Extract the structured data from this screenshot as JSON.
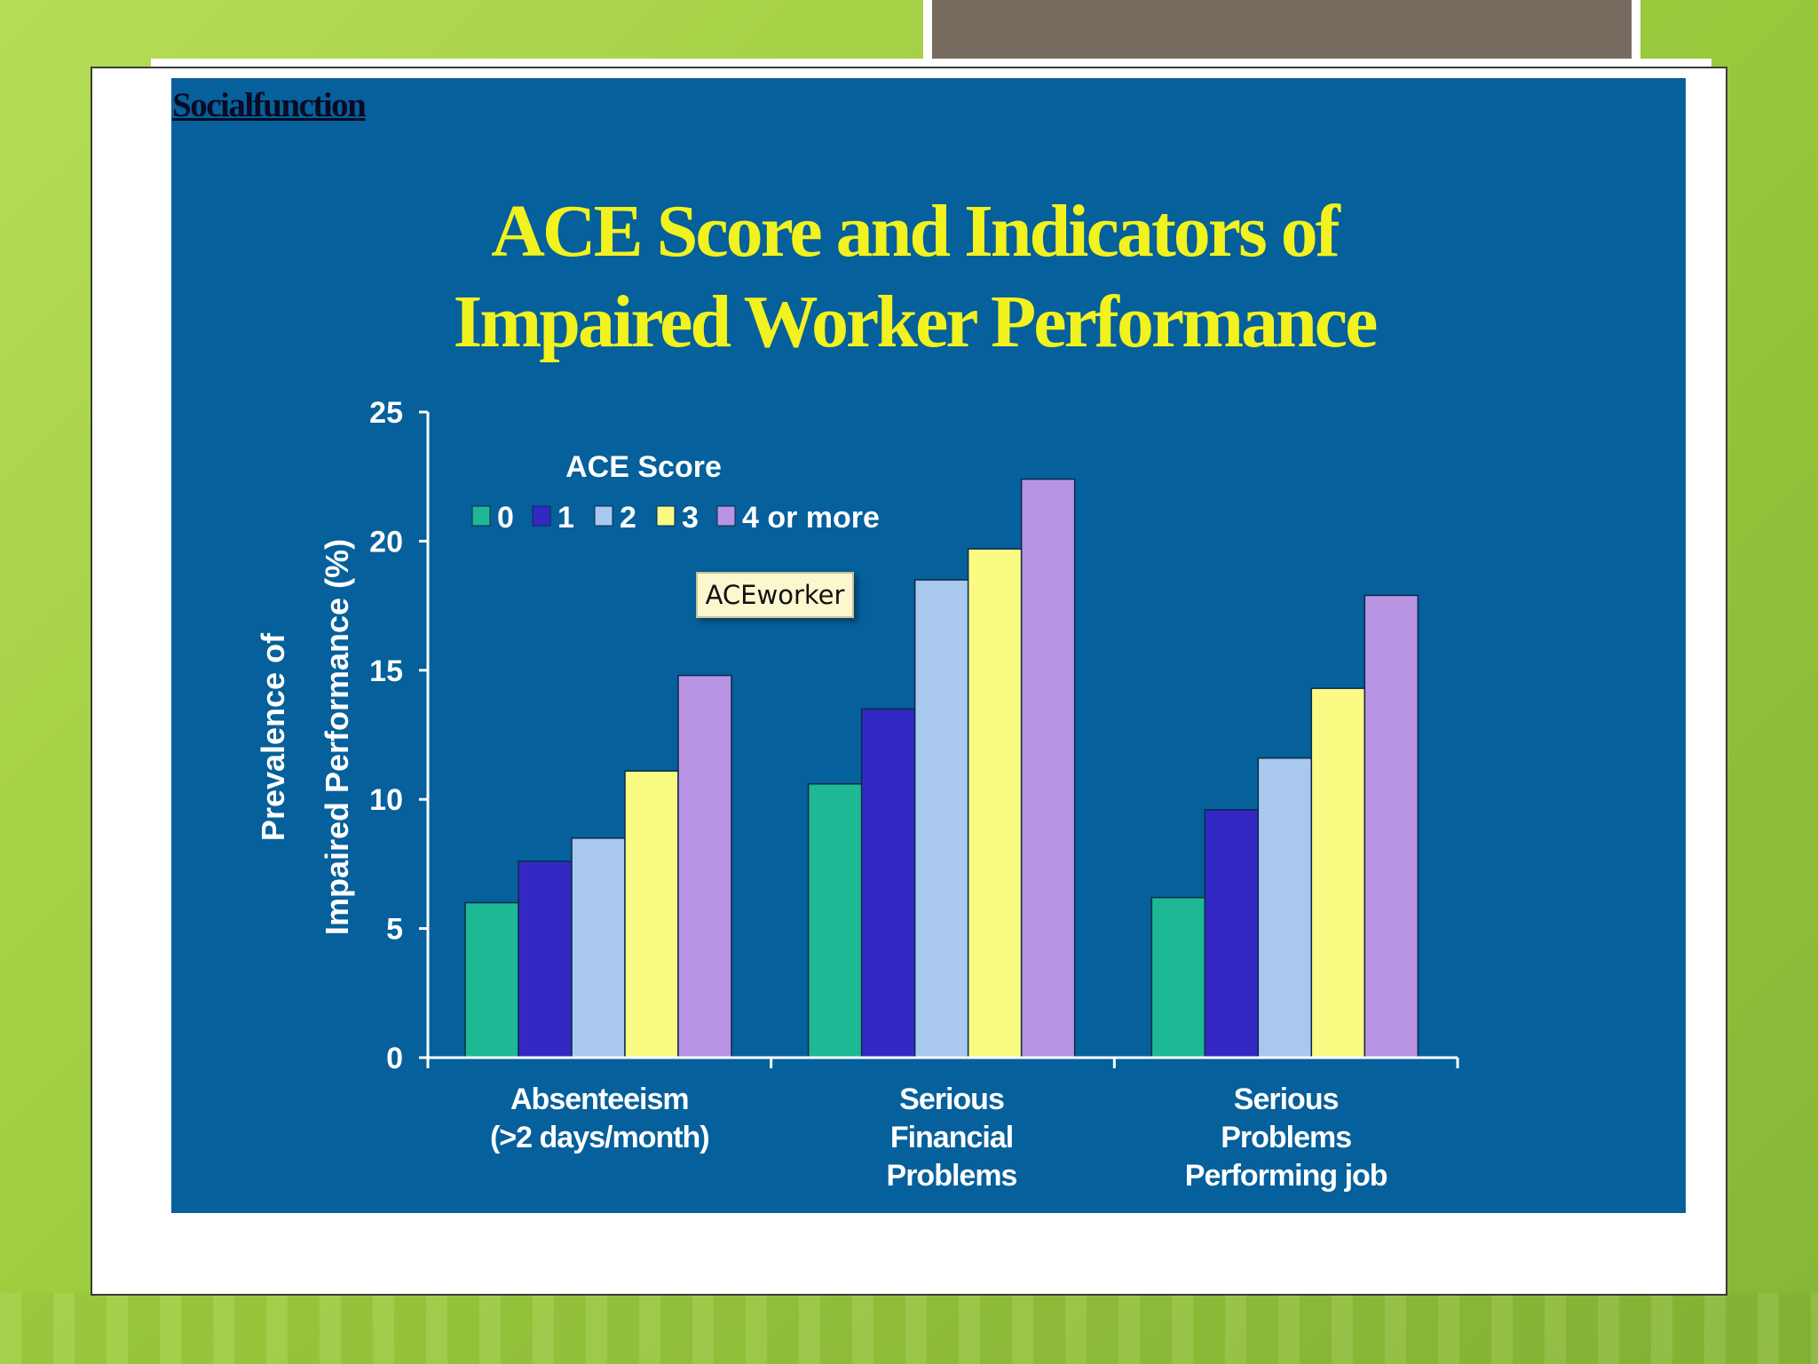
{
  "slide": {
    "link_text": "Socialfunction",
    "title_line1": "ACE Score and Indicators of",
    "title_line2": "Impaired Worker Performance",
    "tooltip": "ACEworker"
  },
  "chart_data": {
    "type": "bar",
    "title": "ACE Score and Indicators of Impaired Worker Performance",
    "ylabel_line1": "Prevalence of",
    "ylabel_line2": "Impaired Performance (%)",
    "ylim": [
      0,
      25
    ],
    "yticks": [
      "0",
      "5",
      "10",
      "15",
      "20",
      "25"
    ],
    "grid": false,
    "legend_title": "ACE Score",
    "legend_placement": "top-left",
    "categories": [
      [
        "Absenteeism",
        "(>2 days/month)"
      ],
      [
        "Serious",
        "Financial",
        "Problems"
      ],
      [
        "Serious",
        "Problems",
        "Performing job"
      ]
    ],
    "series": [
      {
        "name": "0",
        "color": "#1eb894",
        "values": [
          6.0,
          10.6,
          6.2
        ]
      },
      {
        "name": "1",
        "color": "#3328c4",
        "values": [
          7.6,
          13.5,
          9.6
        ]
      },
      {
        "name": "2",
        "color": "#a9c8ee",
        "values": [
          8.5,
          18.5,
          11.6
        ]
      },
      {
        "name": "3",
        "color": "#fbfb84",
        "values": [
          11.1,
          19.7,
          14.3
        ]
      },
      {
        "name": "4 or more",
        "color": "#b993e4",
        "values": [
          14.8,
          22.4,
          17.9
        ]
      }
    ],
    "colors": {
      "axis": "#ffffff",
      "text": "#ffffff",
      "title": "#f2f21e",
      "background": "#05609b"
    }
  }
}
